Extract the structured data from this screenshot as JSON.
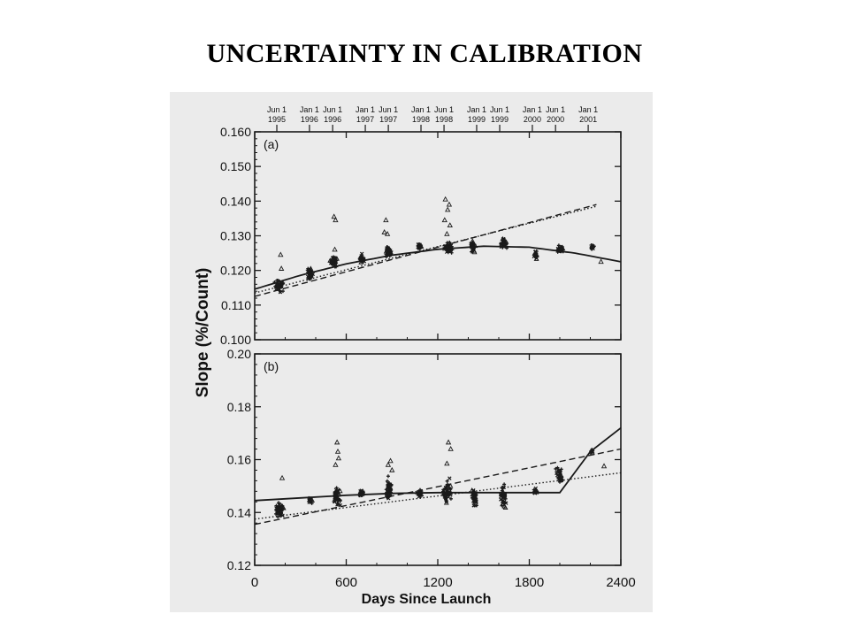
{
  "slide_title": "UNCERTAINTY IN CALIBRATION",
  "figure": {
    "shared_ylabel": "Slope (%/Count)",
    "xlabel": "Days Since Launch",
    "top_axis_dates": [
      {
        "day": 145,
        "line1": "Jun 1",
        "line2": "1995"
      },
      {
        "day": 359,
        "line1": "Jan 1",
        "line2": "1996"
      },
      {
        "day": 511,
        "line1": "Jun 1",
        "line2": "1996"
      },
      {
        "day": 725,
        "line1": "Jan 1",
        "line2": "1997"
      },
      {
        "day": 876,
        "line1": "Jun 1",
        "line2": "1997"
      },
      {
        "day": 1090,
        "line1": "Jan 1",
        "line2": "1998"
      },
      {
        "day": 1241,
        "line1": "Jun 1",
        "line2": "1998"
      },
      {
        "day": 1455,
        "line1": "Jan 1",
        "line2": "1999"
      },
      {
        "day": 1606,
        "line1": "Jun 1",
        "line2": "1999"
      },
      {
        "day": 1820,
        "line1": "Jan 1",
        "line2": "2000"
      },
      {
        "day": 1972,
        "line1": "Jun 1",
        "line2": "2000"
      },
      {
        "day": 2186,
        "line1": "Jan 1",
        "line2": "2001"
      }
    ]
  },
  "chart_data": [
    {
      "type": "scatter",
      "panel_label": "(a)",
      "xlim": [
        0,
        2400
      ],
      "ylim": [
        0.1,
        0.16
      ],
      "xticks": [
        0,
        600,
        1200,
        1800,
        2400
      ],
      "yticks": [
        "0.100",
        "0.110",
        "0.120",
        "0.130",
        "0.140",
        "0.150",
        "0.160"
      ],
      "clusters": [
        {
          "x": 160,
          "y": 0.1155,
          "n": 40,
          "spread_x": 25,
          "spread_y": 0.0015
        },
        {
          "x": 365,
          "y": 0.119,
          "n": 35,
          "spread_x": 15,
          "spread_y": 0.0015
        },
        {
          "x": 520,
          "y": 0.1225,
          "n": 40,
          "spread_x": 18,
          "spread_y": 0.0012
        },
        {
          "x": 700,
          "y": 0.1235,
          "n": 25,
          "spread_x": 15,
          "spread_y": 0.001
        },
        {
          "x": 880,
          "y": 0.1255,
          "n": 40,
          "spread_x": 20,
          "spread_y": 0.0012
        },
        {
          "x": 1080,
          "y": 0.127,
          "n": 20,
          "spread_x": 12,
          "spread_y": 0.0008
        },
        {
          "x": 1270,
          "y": 0.1265,
          "n": 45,
          "spread_x": 25,
          "spread_y": 0.0012
        },
        {
          "x": 1430,
          "y": 0.127,
          "n": 40,
          "spread_x": 12,
          "spread_y": 0.0018
        },
        {
          "x": 1630,
          "y": 0.128,
          "n": 40,
          "spread_x": 20,
          "spread_y": 0.0012
        },
        {
          "x": 1840,
          "y": 0.1245,
          "n": 20,
          "spread_x": 10,
          "spread_y": 0.0012
        },
        {
          "x": 2000,
          "y": 0.126,
          "n": 30,
          "spread_x": 20,
          "spread_y": 0.001
        },
        {
          "x": 2210,
          "y": 0.1265,
          "n": 15,
          "spread_x": 12,
          "spread_y": 0.0012
        }
      ],
      "outliers": [
        {
          "x": 170,
          "y": 0.1245
        },
        {
          "x": 175,
          "y": 0.1205
        },
        {
          "x": 520,
          "y": 0.1355
        },
        {
          "x": 530,
          "y": 0.1345
        },
        {
          "x": 525,
          "y": 0.126
        },
        {
          "x": 860,
          "y": 0.1345
        },
        {
          "x": 850,
          "y": 0.131
        },
        {
          "x": 870,
          "y": 0.1305
        },
        {
          "x": 1250,
          "y": 0.1405
        },
        {
          "x": 1275,
          "y": 0.139
        },
        {
          "x": 1265,
          "y": 0.1375
        },
        {
          "x": 1245,
          "y": 0.1345
        },
        {
          "x": 1280,
          "y": 0.133
        },
        {
          "x": 1260,
          "y": 0.1305
        },
        {
          "x": 2270,
          "y": 0.1225
        }
      ],
      "fits": [
        {
          "style": "solid",
          "x": [
            0,
            300,
            600,
            900,
            1200,
            1500,
            1800,
            2100,
            2400
          ],
          "y": [
            0.1146,
            0.1186,
            0.1219,
            0.1244,
            0.1261,
            0.127,
            0.1267,
            0.125,
            0.1225
          ]
        },
        {
          "style": "dashed",
          "x": [
            0,
            2240
          ],
          "y": [
            0.1125,
            0.139
          ]
        },
        {
          "style": "dotted",
          "x": [
            0,
            2240
          ],
          "y": [
            0.1135,
            0.1385
          ]
        }
      ]
    },
    {
      "type": "scatter",
      "panel_label": "(b)",
      "xlim": [
        0,
        2400
      ],
      "ylim": [
        0.12,
        0.2
      ],
      "xticks": [
        0,
        600,
        1200,
        1800,
        2400
      ],
      "xtick_labels": [
        "0",
        "600",
        "1200",
        "1800",
        "2400"
      ],
      "yticks": [
        "0.12",
        "0.14",
        "0.16",
        "0.18",
        "0.20"
      ],
      "clusters": [
        {
          "x": 160,
          "y": 0.141,
          "n": 40,
          "spread_x": 25,
          "spread_y": 0.0025
        },
        {
          "x": 365,
          "y": 0.1445,
          "n": 20,
          "spread_x": 12,
          "spread_y": 0.001
        },
        {
          "x": 540,
          "y": 0.146,
          "n": 40,
          "spread_x": 22,
          "spread_y": 0.003
        },
        {
          "x": 700,
          "y": 0.147,
          "n": 20,
          "spread_x": 12,
          "spread_y": 0.001
        },
        {
          "x": 880,
          "y": 0.149,
          "n": 45,
          "spread_x": 20,
          "spread_y": 0.0035
        },
        {
          "x": 1080,
          "y": 0.147,
          "n": 20,
          "spread_x": 12,
          "spread_y": 0.001
        },
        {
          "x": 1260,
          "y": 0.148,
          "n": 45,
          "spread_x": 25,
          "spread_y": 0.0035
        },
        {
          "x": 1440,
          "y": 0.146,
          "n": 35,
          "spread_x": 15,
          "spread_y": 0.0025
        },
        {
          "x": 1630,
          "y": 0.146,
          "n": 40,
          "spread_x": 20,
          "spread_y": 0.0035
        },
        {
          "x": 1840,
          "y": 0.148,
          "n": 15,
          "spread_x": 10,
          "spread_y": 0.001
        },
        {
          "x": 2000,
          "y": 0.154,
          "n": 30,
          "spread_x": 20,
          "spread_y": 0.0025
        },
        {
          "x": 2210,
          "y": 0.163,
          "n": 10,
          "spread_x": 8,
          "spread_y": 0.0008
        }
      ],
      "outliers": [
        {
          "x": 180,
          "y": 0.153
        },
        {
          "x": 540,
          "y": 0.1665
        },
        {
          "x": 545,
          "y": 0.163
        },
        {
          "x": 550,
          "y": 0.1605
        },
        {
          "x": 530,
          "y": 0.158
        },
        {
          "x": 890,
          "y": 0.1595
        },
        {
          "x": 875,
          "y": 0.158
        },
        {
          "x": 900,
          "y": 0.156
        },
        {
          "x": 1270,
          "y": 0.1665
        },
        {
          "x": 1285,
          "y": 0.164
        },
        {
          "x": 1260,
          "y": 0.1585
        },
        {
          "x": 2290,
          "y": 0.1575
        }
      ],
      "fits": [
        {
          "style": "solid",
          "x": [
            0,
            300,
            600,
            900,
            1200,
            1500,
            1800,
            2000,
            2200,
            2400
          ],
          "y": [
            0.1445,
            0.1455,
            0.1465,
            0.1472,
            0.1475,
            0.1475,
            0.1475,
            0.1475,
            0.163,
            0.172
          ]
        },
        {
          "style": "dashed",
          "x": [
            0,
            2400
          ],
          "y": [
            0.1355,
            0.164
          ]
        },
        {
          "style": "dotted",
          "x": [
            0,
            2400
          ],
          "y": [
            0.1375,
            0.155
          ]
        }
      ]
    }
  ]
}
